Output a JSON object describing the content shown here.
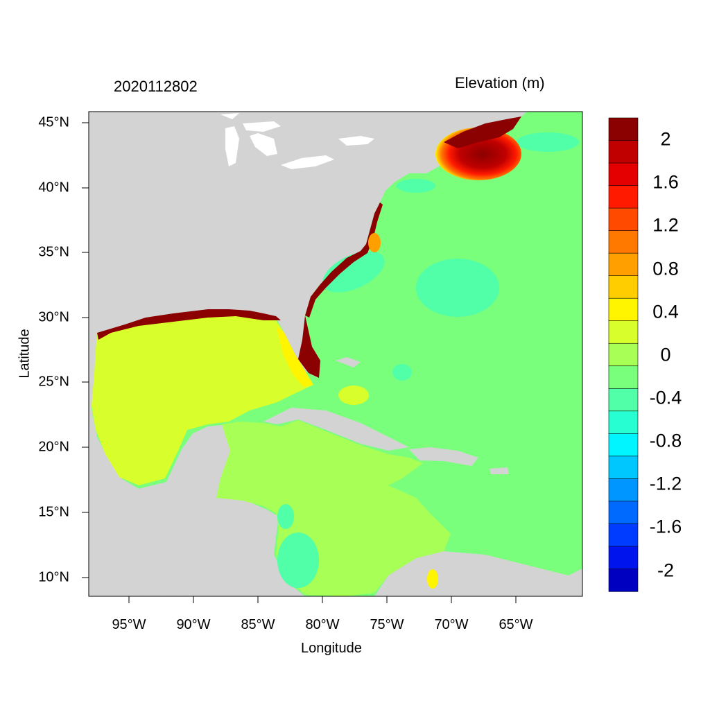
{
  "map": {
    "date_stamp": "2020112802",
    "variable_label": "Elevation (m)",
    "xlabel": "Longitude",
    "ylabel": "Latitude",
    "lon_ticks": [
      "95°W",
      "90°W",
      "85°W",
      "80°W",
      "75°W",
      "70°W",
      "65°W"
    ],
    "lat_ticks": [
      "45°N",
      "40°N",
      "35°N",
      "30°N",
      "25°N",
      "20°N",
      "15°N",
      "10°N"
    ],
    "land_color": "#d3d3d3",
    "colorbar": {
      "labels": [
        "2",
        "1.6",
        "1.2",
        "0.8",
        "0.4",
        "0",
        "-0.4",
        "-0.8",
        "-1.2",
        "-1.6",
        "-2"
      ],
      "colors": [
        "#8b0000",
        "#c00000",
        "#e40000",
        "#ff1a00",
        "#ff4a00",
        "#ff7800",
        "#ffa000",
        "#ffcd00",
        "#fff500",
        "#d8ff2c",
        "#a8ff55",
        "#7aff7d",
        "#50ffa8",
        "#27ffd2",
        "#00f5ff",
        "#00c8ff",
        "#0096ff",
        "#006aff",
        "#003cff",
        "#0014ee",
        "#0000c0"
      ]
    }
  }
}
